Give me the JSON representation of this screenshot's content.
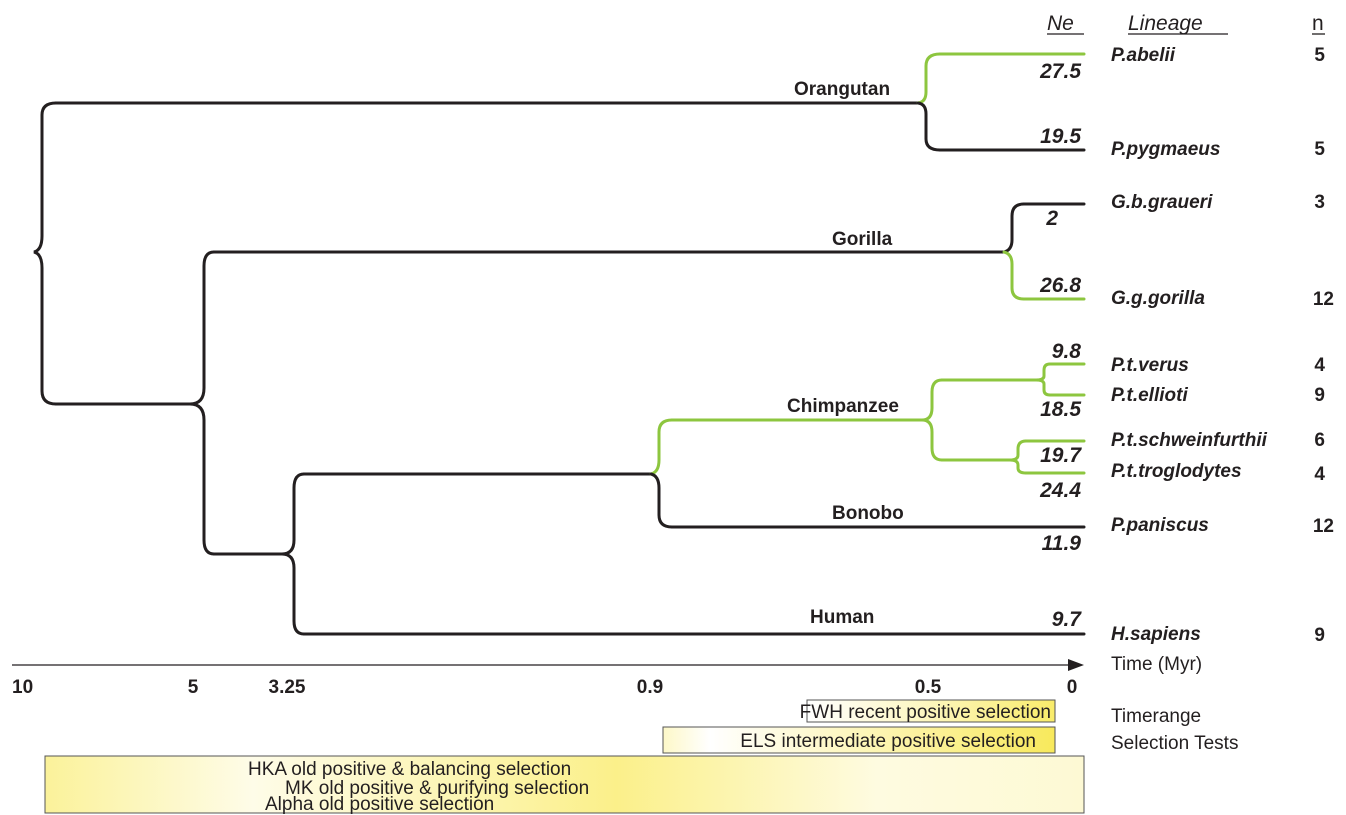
{
  "header": {
    "ne": "Ne",
    "lineage": "Lineage",
    "n": "n"
  },
  "clades": {
    "orangutan": "Orangutan",
    "gorilla": "Gorilla",
    "chimpanzee": "Chimpanzee",
    "bonobo": "Bonobo",
    "human": "Human"
  },
  "tips": [
    {
      "id": "abelii",
      "name": "P.abelii",
      "ne": "27.5",
      "n": "5",
      "branch_color": "green"
    },
    {
      "id": "pygmaeus",
      "name": "P.pygmaeus",
      "ne": "19.5",
      "n": "5",
      "branch_color": "dark"
    },
    {
      "id": "graueri",
      "name": "G.b.graueri",
      "ne": "2",
      "n": "3",
      "branch_color": "dark"
    },
    {
      "id": "gorilla",
      "name": "G.g.gorilla",
      "ne": "26.8",
      "n": "12",
      "branch_color": "green"
    },
    {
      "id": "verus",
      "name": "P.t.verus",
      "ne": "9.8",
      "n": "4",
      "branch_color": "green"
    },
    {
      "id": "ellioti",
      "name": "P.t.ellioti",
      "ne": "18.5",
      "n": "9",
      "branch_color": "green"
    },
    {
      "id": "schweinfurthii",
      "name": "P.t.schweinfurthii",
      "ne": "19.7",
      "n": "6",
      "branch_color": "green"
    },
    {
      "id": "troglodytes",
      "name": "P.t.troglodytes",
      "ne": "24.4",
      "n": "4",
      "branch_color": "green"
    },
    {
      "id": "paniscus",
      "name": "P.paniscus",
      "ne": "11.9",
      "n": "12",
      "branch_color": "dark"
    },
    {
      "id": "sapiens",
      "name": "H.sapiens",
      "ne": "9.7",
      "n": "9",
      "branch_color": "dark"
    }
  ],
  "time_axis": {
    "label": "Time (Myr)",
    "ticks": [
      "10",
      "5",
      "3.25",
      "0.9",
      "0.5",
      "0"
    ]
  },
  "selection": {
    "side_label_line1": "Timerange",
    "side_label_line2": "Selection Tests",
    "fwh": "FWH recent positive selection",
    "els": "ELS intermediate positive selection",
    "hka": "HKA old positive & balancing selection",
    "mk": "MK old positive & purifying selection",
    "alpha": "Alpha old positive selection"
  },
  "colors": {
    "green_branch": "#8dc63f",
    "dark_branch": "#231f20",
    "selection_yellow": "#fbf28a"
  }
}
